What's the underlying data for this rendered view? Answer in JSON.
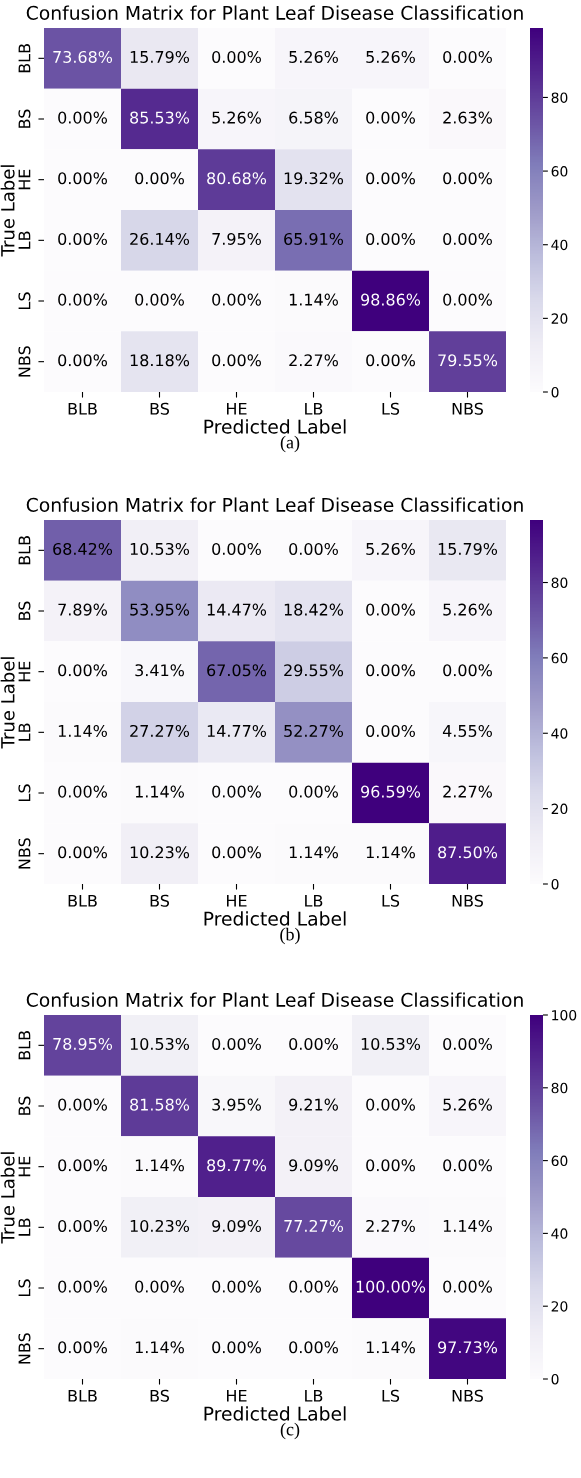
{
  "chart_data": [
    {
      "type": "heatmap",
      "title": "Confusion Matrix for Plant Leaf Disease Classification",
      "xlabel": "Predicted Label",
      "ylabel": "True Label",
      "categories": [
        "BLB",
        "BS",
        "HE",
        "LB",
        "LS",
        "NBS"
      ],
      "y_categories": [
        "BLB",
        "BS",
        "HE",
        "LB",
        "LS",
        "NBS"
      ],
      "cells": [
        [
          73.68,
          15.79,
          0.0,
          5.26,
          5.26,
          0.0
        ],
        [
          0.0,
          85.53,
          5.26,
          6.58,
          0.0,
          2.63
        ],
        [
          0.0,
          0.0,
          80.68,
          19.32,
          0.0,
          0.0
        ],
        [
          0.0,
          26.14,
          7.95,
          65.91,
          0.0,
          0.0
        ],
        [
          0.0,
          0.0,
          0.0,
          1.14,
          98.86,
          0.0
        ],
        [
          0.0,
          18.18,
          0.0,
          2.27,
          0.0,
          79.55
        ]
      ],
      "cell_labels": [
        [
          "73.68%",
          "15.79%",
          "0.00%",
          "5.26%",
          "5.26%",
          "0.00%"
        ],
        [
          "0.00%",
          "85.53%",
          "5.26%",
          "6.58%",
          "0.00%",
          "2.63%"
        ],
        [
          "0.00%",
          "0.00%",
          "80.68%",
          "19.32%",
          "0.00%",
          "0.00%"
        ],
        [
          "0.00%",
          "26.14%",
          "7.95%",
          "65.91%",
          "0.00%",
          "0.00%"
        ],
        [
          "0.00%",
          "0.00%",
          "0.00%",
          "1.14%",
          "98.86%",
          "0.00%"
        ],
        [
          "0.00%",
          "18.18%",
          "0.00%",
          "2.27%",
          "0.00%",
          "79.55%"
        ]
      ],
      "clim": [
        0,
        98.86
      ],
      "cticks": [
        0,
        20,
        40,
        60,
        80
      ],
      "annotations": [
        "(a)"
      ]
    },
    {
      "type": "heatmap",
      "title": "Confusion Matrix for Plant Leaf Disease Classification",
      "xlabel": "Predicted Label",
      "ylabel": "True Label",
      "categories": [
        "BLB",
        "BS",
        "HE",
        "LB",
        "LS",
        "NBS"
      ],
      "y_categories": [
        "BLB",
        "BS",
        "HE",
        "LB",
        "LS",
        "NBS"
      ],
      "cells": [
        [
          68.42,
          10.53,
          0.0,
          0.0,
          5.26,
          15.79
        ],
        [
          7.89,
          53.95,
          14.47,
          18.42,
          0.0,
          5.26
        ],
        [
          0.0,
          3.41,
          67.05,
          29.55,
          0.0,
          0.0
        ],
        [
          1.14,
          27.27,
          14.77,
          52.27,
          0.0,
          4.55
        ],
        [
          0.0,
          1.14,
          0.0,
          0.0,
          96.59,
          2.27
        ],
        [
          0.0,
          10.23,
          0.0,
          1.14,
          1.14,
          87.5
        ]
      ],
      "cell_labels": [
        [
          "68.42%",
          "10.53%",
          "0.00%",
          "0.00%",
          "5.26%",
          "15.79%"
        ],
        [
          "7.89%",
          "53.95%",
          "14.47%",
          "18.42%",
          "0.00%",
          "5.26%"
        ],
        [
          "0.00%",
          "3.41%",
          "67.05%",
          "29.55%",
          "0.00%",
          "0.00%"
        ],
        [
          "1.14%",
          "27.27%",
          "14.77%",
          "52.27%",
          "0.00%",
          "4.55%"
        ],
        [
          "0.00%",
          "1.14%",
          "0.00%",
          "0.00%",
          "96.59%",
          "2.27%"
        ],
        [
          "0.00%",
          "10.23%",
          "0.00%",
          "1.14%",
          "1.14%",
          "87.50%"
        ]
      ],
      "clim": [
        0,
        96.59
      ],
      "cticks": [
        0,
        20,
        40,
        60,
        80
      ],
      "annotations": [
        "(b)"
      ]
    },
    {
      "type": "heatmap",
      "title": "Confusion Matrix for Plant Leaf Disease Classification",
      "xlabel": "Predicted Label",
      "ylabel": "True Label",
      "categories": [
        "BLB",
        "BS",
        "HE",
        "LB",
        "LS",
        "NBS"
      ],
      "y_categories": [
        "BLB",
        "BS",
        "HE",
        "LB",
        "LS",
        "NBS"
      ],
      "cells": [
        [
          78.95,
          10.53,
          0.0,
          0.0,
          10.53,
          0.0
        ],
        [
          0.0,
          81.58,
          3.95,
          9.21,
          0.0,
          5.26
        ],
        [
          0.0,
          1.14,
          89.77,
          9.09,
          0.0,
          0.0
        ],
        [
          0.0,
          10.23,
          9.09,
          77.27,
          2.27,
          1.14
        ],
        [
          0.0,
          0.0,
          0.0,
          0.0,
          100.0,
          0.0
        ],
        [
          0.0,
          1.14,
          0.0,
          0.0,
          1.14,
          97.73
        ]
      ],
      "cell_labels": [
        [
          "78.95%",
          "10.53%",
          "0.00%",
          "0.00%",
          "10.53%",
          "0.00%"
        ],
        [
          "0.00%",
          "81.58%",
          "3.95%",
          "9.21%",
          "0.00%",
          "5.26%"
        ],
        [
          "0.00%",
          "1.14%",
          "89.77%",
          "9.09%",
          "0.00%",
          "0.00%"
        ],
        [
          "0.00%",
          "10.23%",
          "9.09%",
          "77.27%",
          "2.27%",
          "1.14%"
        ],
        [
          "0.00%",
          "0.00%",
          "0.00%",
          "0.00%",
          "100.00%",
          "0.00%"
        ],
        [
          "0.00%",
          "1.14%",
          "0.00%",
          "0.00%",
          "1.14%",
          "97.73%"
        ]
      ],
      "clim": [
        0,
        100
      ],
      "cticks": [
        0,
        20,
        40,
        60,
        80,
        100
      ],
      "annotations": [
        "(c)"
      ]
    }
  ]
}
